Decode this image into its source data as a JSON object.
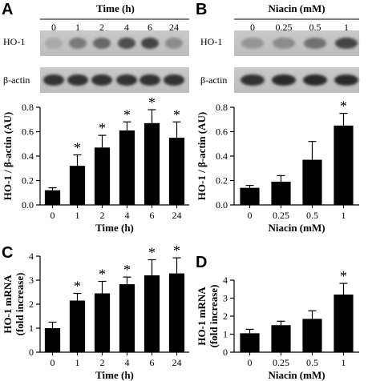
{
  "panels": {
    "A": {
      "label": "A",
      "header": "Time (h)",
      "conditions": [
        "0",
        "1",
        "2",
        "4",
        "6",
        "24"
      ],
      "blot_labels": [
        "HO-1",
        "β-actin"
      ]
    },
    "B": {
      "label": "B",
      "header": "Niacin (mM)",
      "conditions": [
        "0",
        "0.25",
        "0.5",
        "1"
      ],
      "blot_labels": [
        "HO-1",
        "β-actin"
      ]
    },
    "C": {
      "label": "C"
    },
    "D": {
      "label": "D"
    }
  },
  "chart_data": [
    {
      "id": "A",
      "type": "bar",
      "categories": [
        "0",
        "1",
        "2",
        "4",
        "6",
        "24"
      ],
      "values": [
        0.12,
        0.32,
        0.47,
        0.61,
        0.67,
        0.55
      ],
      "errors": [
        0.02,
        0.09,
        0.1,
        0.07,
        0.11,
        0.13
      ],
      "significant": [
        false,
        true,
        true,
        true,
        true,
        true
      ],
      "significance_marker": "*",
      "xlabel": "Time (h)",
      "ylabel": "HO-1 / β-actin (AU)",
      "ylim": [
        0,
        0.8
      ],
      "yticks": [
        "0.0",
        "0.2",
        "0.4",
        "0.6",
        "0.8"
      ],
      "bar_color": "#000000"
    },
    {
      "id": "B",
      "type": "bar",
      "categories": [
        "0",
        "0.25",
        "0.5",
        "1"
      ],
      "values": [
        0.14,
        0.19,
        0.37,
        0.65
      ],
      "errors": [
        0.02,
        0.05,
        0.15,
        0.1
      ],
      "significant": [
        false,
        false,
        false,
        true
      ],
      "significance_marker": "*",
      "xlabel": "Niacin (mM)",
      "ylabel": "HO-1 / β-actin (AU)",
      "ylim": [
        0,
        0.8
      ],
      "yticks": [
        "0.0",
        "0.2",
        "0.4",
        "0.6",
        "0.8"
      ],
      "bar_color": "#000000"
    },
    {
      "id": "C",
      "type": "bar",
      "categories": [
        "0",
        "1",
        "2",
        "4",
        "6",
        "24"
      ],
      "values": [
        1.0,
        2.15,
        2.45,
        2.83,
        3.2,
        3.28
      ],
      "errors": [
        0.25,
        0.3,
        0.5,
        0.3,
        0.65,
        0.65
      ],
      "significant": [
        false,
        true,
        true,
        true,
        true,
        true
      ],
      "significance_marker": "*",
      "xlabel": "Time (h)",
      "ylabel": "HO-1 mRNA (fold increase)",
      "ylabel_lines": [
        "HO-1 mRNA",
        "(fold increase)"
      ],
      "ylim": [
        0,
        4
      ],
      "yticks": [
        "0",
        "1",
        "2",
        "3",
        "4"
      ],
      "bar_color": "#000000"
    },
    {
      "id": "D",
      "type": "bar",
      "categories": [
        "0",
        "0.25",
        "0.5",
        "1"
      ],
      "values": [
        1.05,
        1.5,
        1.85,
        3.2
      ],
      "errors": [
        0.22,
        0.22,
        0.45,
        0.62
      ],
      "significant": [
        false,
        false,
        false,
        true
      ],
      "significance_marker": "*",
      "xlabel": "Niacin (mM)",
      "ylabel": "HO-1 mRNA (fold increase)",
      "ylabel_lines": [
        "HO-1 mRNA",
        "(fold increase)"
      ],
      "ylim": [
        0,
        4
      ],
      "yticks": [
        "0",
        "1",
        "2",
        "3",
        "4"
      ],
      "bar_color": "#000000"
    }
  ]
}
